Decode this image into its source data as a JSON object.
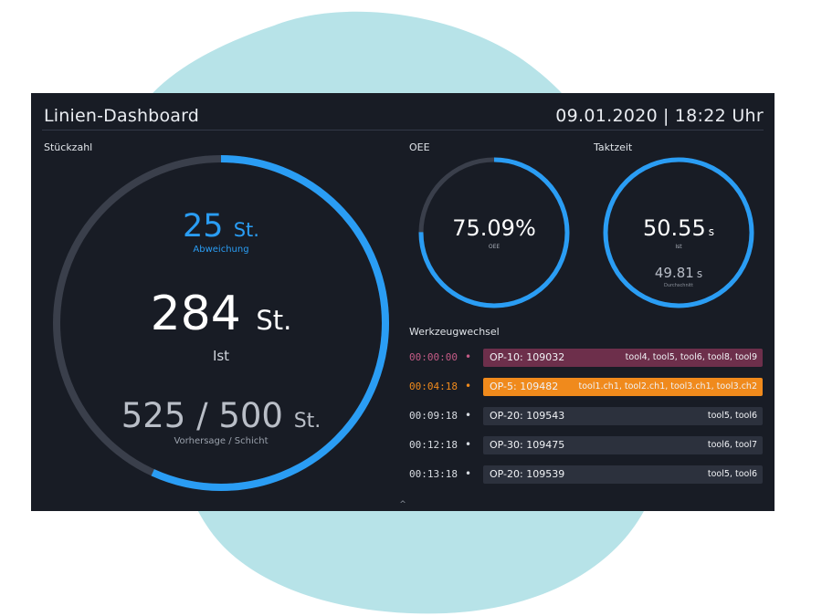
{
  "header": {
    "title": "Linien-Dashboard",
    "date": "09.01.2020",
    "separator": "|",
    "time": "18:22 Uhr"
  },
  "piece_count": {
    "label": "Stückzahl",
    "deviation": {
      "value": "25",
      "unit": "St.",
      "label": "Abweichung"
    },
    "actual": {
      "value": "284",
      "unit": "St.",
      "label": "Ist"
    },
    "forecast": {
      "value": "525 / 500",
      "unit": "St.",
      "label": "Vorhersage / Schicht"
    },
    "progress_fraction": 0.568
  },
  "oee": {
    "label": "OEE",
    "value": "75.09%",
    "sub_label": "OEE",
    "fill_fraction": 0.7509
  },
  "cycle_time": {
    "label": "Taktzeit",
    "actual": {
      "value": "50.55",
      "unit": "s",
      "label": "Ist"
    },
    "average": {
      "value": "49.81",
      "unit": "s",
      "label": "Durchschnitt"
    },
    "fill_fraction": 1.0
  },
  "tool_changes": {
    "label": "Werkzeugwechsel",
    "rows": [
      {
        "time": "00:00:00",
        "dot": "•",
        "op": "OP-10: 109032",
        "tools": "tool4, tool5, tool6, tool8, tool9",
        "state": "past"
      },
      {
        "time": "00:04:18",
        "dot": "•",
        "op": "OP-5: 109482",
        "tools": "tool1.ch1, tool2.ch1, tool3.ch1, tool3.ch2",
        "state": "current"
      },
      {
        "time": "00:09:18",
        "dot": "•",
        "op": "OP-20: 109543",
        "tools": "tool5, tool6",
        "state": "upcoming"
      },
      {
        "time": "00:12:18",
        "dot": "•",
        "op": "OP-30: 109475",
        "tools": "tool6, tool7",
        "state": "upcoming"
      },
      {
        "time": "00:13:18",
        "dot": "•",
        "op": "OP-20: 109539",
        "tools": "tool5, tool6",
        "state": "upcoming"
      }
    ]
  },
  "scroll_hint": "^",
  "colors": {
    "panel": "#181c25",
    "accent_blue": "#2a9df4",
    "track": "#3a3f4b",
    "past_row": "#6d2f4b",
    "current_row": "#f08a1c",
    "upcoming_row": "#2c313d",
    "background_blob": "#b7e3e8"
  },
  "icons": {
    "timeline_dot": "bullet",
    "scroll_hint": "chevron-up-icon"
  }
}
